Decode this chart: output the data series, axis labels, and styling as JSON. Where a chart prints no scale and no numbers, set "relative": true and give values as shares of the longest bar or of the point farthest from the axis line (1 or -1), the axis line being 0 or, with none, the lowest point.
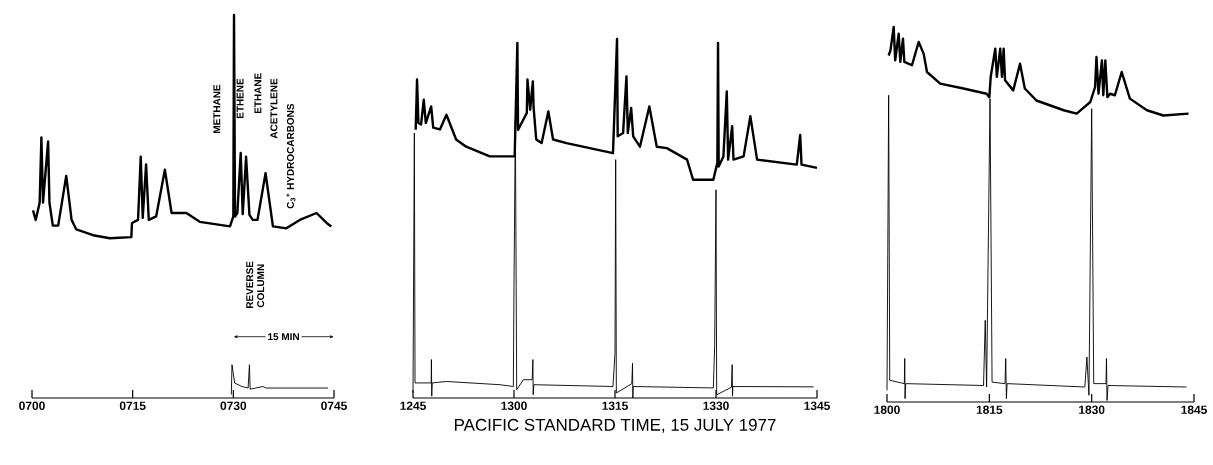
{
  "chart_data": [
    {
      "type": "line",
      "relative": true,
      "xlim": [
        700,
        745
      ],
      "xticks": [
        {
          "value": 700,
          "label": "0700"
        },
        {
          "value": 715,
          "label": "0715"
        },
        {
          "value": 730,
          "label": "0730"
        },
        {
          "value": 745,
          "label": "0745"
        }
      ],
      "series": [
        {
          "color": "#000000",
          "x": [
            700.15,
            700.55,
            701.14,
            701.4,
            701.64,
            702.4,
            702.6,
            703.1,
            703.9,
            705.1,
            705.9,
            706.6,
            709.1,
            711.6,
            714.8,
            714.9,
            715.8,
            716.2,
            716.5,
            717.0,
            717.4,
            718.5,
            719.8,
            720.8,
            723.0,
            725.0,
            729.5,
            730.0,
            730.1,
            730.25,
            730.6,
            731.1,
            731.4,
            731.9,
            732.4,
            732.9,
            733.6,
            734.8,
            735.9,
            737.9,
            739.9,
            742.4,
            743.9,
            744.6
          ],
          "values": [
            0.49,
            0.465,
            0.51,
            0.68,
            0.51,
            0.67,
            0.51,
            0.45,
            0.45,
            0.58,
            0.465,
            0.44,
            0.425,
            0.417,
            0.42,
            0.457,
            0.465,
            0.63,
            0.47,
            0.61,
            0.465,
            0.474,
            0.596,
            0.483,
            0.483,
            0.46,
            0.448,
            0.474,
            1.0,
            0.474,
            0.483,
            0.64,
            0.48,
            0.63,
            0.478,
            0.465,
            0.465,
            0.587,
            0.448,
            0.443,
            0.465,
            0.483,
            0.457,
            0.448
          ]
        },
        {
          "color": "#000000",
          "x": [
            729.7,
            729.8,
            730.2,
            731.3,
            732.2,
            732.4,
            732.5,
            734.4,
            734.9,
            744.1
          ],
          "values": [
            0.009,
            0.087,
            0.039,
            0.03,
            0.026,
            0.087,
            0.023,
            0.03,
            0.026,
            0.026
          ]
        }
      ],
      "annotations": [
        "METHANE",
        "ETHENE",
        "ETHANE",
        "ACETYLENE",
        "C$_{3}$$^{+}$ HYDROCARBONS",
        "REVERSE COLUMN",
        "15 MIN"
      ]
    },
    {
      "type": "line",
      "relative": true,
      "xlim": [
        "1977-07-15T12:45",
        "1977-07-15T13:45"
      ],
      "xlabel": "PACIFIC STANDARD TIME, 15 JULY 1977",
      "xticks": [
        {
          "value": "1977-07-15T12:45",
          "label": "1245"
        },
        {
          "value": "1977-07-15T13:00",
          "label": "1300"
        },
        {
          "value": "1977-07-15T13:15",
          "label": "1315"
        },
        {
          "value": "1977-07-15T13:30",
          "label": "1330"
        },
        {
          "value": "1977-07-15T13:45",
          "label": "1345"
        }
      ],
      "series": [
        {
          "color": "#000000",
          "x": [
            "1977-07-15T12:45:24",
            "1977-07-15T12:45:36",
            "1977-07-15T12:45:48",
            "1977-07-15T12:46:12",
            "1977-07-15T12:46:36",
            "1977-07-15T12:46:54",
            "1977-07-15T12:47:42",
            "1977-07-15T12:48:00",
            "1977-07-15T12:49:00",
            "1977-07-15T12:49:58",
            "1977-07-15T12:51:24",
            "1977-07-15T12:52:54",
            "1977-07-15T12:56:24",
            "1977-07-15T13:00:06",
            "1977-07-15T13:00:30",
            "1977-07-15T13:00:36",
            "1977-07-15T13:01:54",
            "1977-07-15T13:02:00",
            "1977-07-15T13:02:24",
            "1977-07-15T13:02:48",
            "1977-07-15T13:02:54",
            "1977-07-15T13:03:18",
            "1977-07-15T13:04:06",
            "1977-07-15T13:05:06",
            "1977-07-15T13:05:48",
            "1977-07-15T13:07:48",
            "1977-07-15T13:14:42",
            "1977-07-15T13:15:18",
            "1977-07-15T13:15:24",
            "1977-07-15T13:16:12",
            "1977-07-15T13:16:42",
            "1977-07-15T13:16:54",
            "1977-07-15T13:17:24",
            "1977-07-15T13:17:42",
            "1977-07-15T13:18:42",
            "1977-07-15T13:20:06",
            "1977-07-15T13:21:12",
            "1977-07-15T13:22:42",
            "1977-07-15T13:25:42",
            "1977-07-15T13:26:36",
            "1977-07-15T13:29:36",
            "1977-07-15T13:30:12",
            "1977-07-15T13:30:18",
            "1977-07-15T13:30:24",
            "1977-07-15T13:31:06",
            "1977-07-15T13:31:36",
            "1977-07-15T13:31:48",
            "1977-07-15T13:32:24",
            "1977-07-15T13:32:36",
            "1977-07-15T13:34:06",
            "1977-07-15T13:35:06",
            "1977-07-15T13:36:06",
            "1977-07-15T13:42:00",
            "1977-07-15T13:42:30",
            "1977-07-15T13:42:42",
            "1977-07-15T13:45:00"
          ],
          "values": [
            0.747,
            0.887,
            0.766,
            0.762,
            0.831,
            0.766,
            0.812,
            0.753,
            0.748,
            0.789,
            0.72,
            0.7,
            0.673,
            0.673,
            0.989,
            0.747,
            0.794,
            0.887,
            0.803,
            0.882,
            0.812,
            0.72,
            0.71,
            0.798,
            0.72,
            0.71,
            0.682,
            1.0,
            0.729,
            0.738,
            0.896,
            0.738,
            0.808,
            0.729,
            0.7,
            0.812,
            0.7,
            0.696,
            0.664,
            0.608,
            0.608,
            0.655,
            0.989,
            0.645,
            0.673,
            0.854,
            0.664,
            0.757,
            0.664,
            0.673,
            0.785,
            0.664,
            0.65,
            0.733,
            0.65,
            0.641
          ]
        },
        {
          "color": "#000000",
          "x": [
            "1977-07-15T12:45:00",
            "1977-07-15T12:45:12",
            "1977-07-15T12:45:18",
            "1977-07-15T12:47:42",
            "1977-07-15T12:47:44",
            "1977-07-15T12:47:47",
            "1977-07-15T12:47:51",
            "1977-07-15T12:49:58",
            "1977-07-15T12:57:54",
            "1977-07-15T12:59:54",
            "1977-07-15T13:00:00",
            "1977-07-15T13:00:12",
            "1977-07-15T13:00:24",
            "1977-07-15T13:01:24",
            "1977-07-15T13:02:42",
            "1977-07-15T13:02:48",
            "1977-07-15T13:02:51",
            "1977-07-15T13:02:57",
            "1977-07-15T13:14:42",
            "1977-07-15T13:15:00",
            "1977-07-15T13:15:06",
            "1977-07-15T13:15:12",
            "1977-07-15T13:17:30",
            "1977-07-15T13:17:36",
            "1977-07-15T13:17:39",
            "1977-07-15T13:17:42",
            "1977-07-15T13:29:36",
            "1977-07-15T13:29:48",
            "1977-07-15T13:30:00",
            "1977-07-15T13:30:06",
            "1977-07-15T13:32:18",
            "1977-07-15T13:32:24",
            "1977-07-15T13:32:27",
            "1977-07-15T13:32:30",
            "1977-07-15T13:44:30"
          ],
          "values": [
            0.014,
            0.738,
            0.042,
            0.042,
            0.107,
            0.005,
            0.042,
            0.046,
            0.037,
            0.032,
            0.311,
            0.775,
            0.023,
            0.051,
            0.051,
            0.107,
            0.009,
            0.037,
            0.032,
            0.125,
            0.664,
            0.014,
            0.04,
            0.097,
            0.0,
            0.032,
            0.028,
            0.144,
            0.58,
            0.009,
            0.03,
            0.093,
            0.005,
            0.032,
            0.031
          ]
        }
      ]
    },
    {
      "type": "line",
      "relative": true,
      "xlim": [
        1800,
        1845
      ],
      "xticks": [
        1800,
        1815,
        1830,
        1845
      ],
      "series": [
        {
          "color": "#000000",
          "x": [
            1800.24,
            1800.5,
            1800.98,
            1801.2,
            1801.71,
            1801.95,
            1802.34,
            1802.54,
            1803.66,
            1804.64,
            1805.37,
            1805.86,
            1807.8,
            1811.2,
            1814.6,
            1815.0,
            1815.2,
            1815.87,
            1816.1,
            1816.6,
            1816.85,
            1817.1,
            1817.3,
            1818.5,
            1819.5,
            1820.2,
            1821.9,
            1825.9,
            1827.8,
            1829.8,
            1830.5,
            1830.7,
            1831.0,
            1831.5,
            1831.7,
            1832.0,
            1832.3,
            1832.7,
            1833.4,
            1834.4,
            1835.6,
            1838.1,
            1840.5,
            1844.2
          ],
          "values": [
            0.924,
            0.937,
            1.0,
            0.911,
            0.982,
            0.907,
            0.969,
            0.907,
            0.898,
            0.96,
            0.929,
            0.88,
            0.849,
            0.836,
            0.822,
            0.813,
            0.867,
            0.942,
            0.867,
            0.942,
            0.867,
            0.942,
            0.858,
            0.831,
            0.902,
            0.836,
            0.804,
            0.778,
            0.769,
            0.8,
            0.84,
            0.92,
            0.822,
            0.911,
            0.818,
            0.911,
            0.813,
            0.822,
            0.818,
            0.88,
            0.809,
            0.778,
            0.764,
            0.769
          ]
        },
        {
          "color": "#000000",
          "x": [
            1800.0,
            1800.24,
            1800.4,
            1802.54,
            1802.6,
            1802.64,
            1802.74,
            1814.15,
            1814.4,
            1814.6,
            1815.1,
            1815.4,
            1817.3,
            1817.4,
            1817.5,
            1817.6,
            1829.0,
            1829.3,
            1829.6,
            1830.0,
            1830.3,
            1832.1,
            1832.17,
            1832.25,
            1832.4,
            1843.9
          ],
          "values": [
            0.031,
            0.818,
            0.058,
            0.049,
            0.116,
            0.009,
            0.049,
            0.044,
            0.218,
            0.04,
            0.809,
            0.053,
            0.049,
            0.116,
            0.009,
            0.049,
            0.04,
            0.12,
            0.018,
            0.782,
            0.049,
            0.049,
            0.116,
            0.004,
            0.044,
            0.04
          ]
        }
      ]
    }
  ]
}
